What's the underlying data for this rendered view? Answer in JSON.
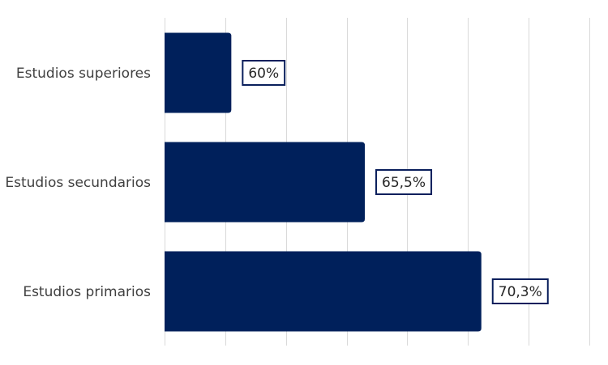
{
  "chart_data": {
    "type": "bar",
    "orientation": "horizontal",
    "categories": [
      "Estudios superiores",
      "Estudios secundarios",
      "Estudios primarios"
    ],
    "values": [
      60,
      65.5,
      70.3
    ],
    "value_labels": [
      "60%",
      "65,5%",
      "70,3%"
    ],
    "xlim": [
      57.25,
      74.75
    ],
    "gridline_step": 2.5,
    "grid": true,
    "bar_color": "#00205b",
    "title": "",
    "xlabel": "",
    "ylabel": ""
  }
}
